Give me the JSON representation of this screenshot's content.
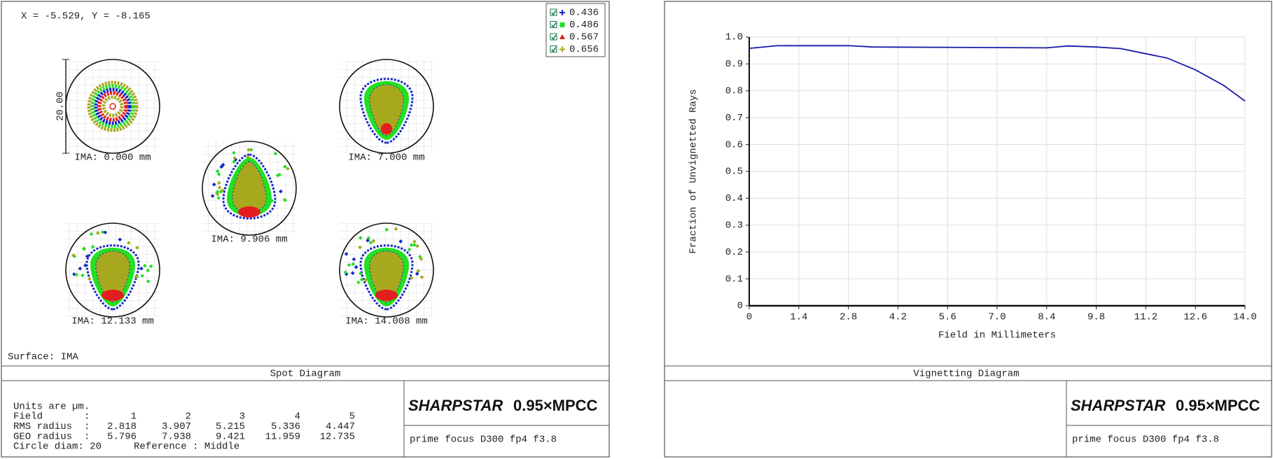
{
  "chart_data": [
    {
      "type": "spot",
      "title": "Spot Diagram",
      "cursor": "X = -5.529, Y = -8.165",
      "scale_label": "20.00",
      "surface": "Surface: IMA",
      "series": [
        {
          "name": "0.436",
          "color": "#1428c8"
        },
        {
          "name": "0.486",
          "color": "#22e022"
        },
        {
          "name": "0.567",
          "color": "#e41e1e"
        },
        {
          "name": "0.656",
          "color": "#a8a81e"
        }
      ],
      "fields": [
        "IMA: 0.000 mm",
        "IMA: 7.000 mm",
        "IMA: 9.906 mm",
        "IMA: 12.133 mm",
        "IMA: 14.008 mm"
      ],
      "table": {
        "units": "Units are µm.",
        "separator": ":",
        "rows": [
          {
            "label": "Field",
            "values": [
              1,
              2,
              3,
              4,
              5
            ]
          },
          {
            "label": "RMS radius",
            "values": [
              2.818,
              3.907,
              5.215,
              5.336,
              4.447
            ]
          },
          {
            "label": "GEO radius",
            "values": [
              5.796,
              7.938,
              9.421,
              11.959,
              12.735
            ]
          }
        ],
        "footer": [
          "Circle diam: 20",
          "Reference  : Middle"
        ]
      },
      "brand": "SHARPSTAR",
      "brand_model": "0.95×MPCC",
      "description": "prime focus D300 fp4 f3.8"
    },
    {
      "type": "line",
      "title": "Vignetting Diagram",
      "xlabel": "Field in Millimeters",
      "ylabel": "Fraction of Unvignetted Rays",
      "x": [
        0,
        0.8,
        2.8,
        3.5,
        8.4,
        9.0,
        9.8,
        10.5,
        11.2,
        11.8,
        12.6,
        13.4,
        14.0
      ],
      "values": [
        0.958,
        0.968,
        0.968,
        0.963,
        0.96,
        0.967,
        0.963,
        0.957,
        0.938,
        0.922,
        0.878,
        0.82,
        0.762
      ],
      "color": "#1a1aa8",
      "xlim": [
        0,
        14
      ],
      "ylim": [
        0,
        1
      ],
      "xticks": [
        0,
        1.4,
        2.8,
        4.2,
        5.6,
        {
          "value": 7,
          "label": "7.0"
        },
        8.4,
        9.8,
        11.2,
        12.6,
        {
          "value": 14,
          "label": "14.0"
        }
      ],
      "yticks": [
        0,
        0.1,
        0.2,
        0.3,
        0.4,
        0.5,
        0.6,
        0.7,
        0.8,
        0.9,
        {
          "value": 1,
          "label": "1.0"
        }
      ],
      "grid": true,
      "brand": "SHARPSTAR",
      "brand_model": "0.95×MPCC",
      "description": "prime focus D300 fp4 f3.8"
    }
  ]
}
